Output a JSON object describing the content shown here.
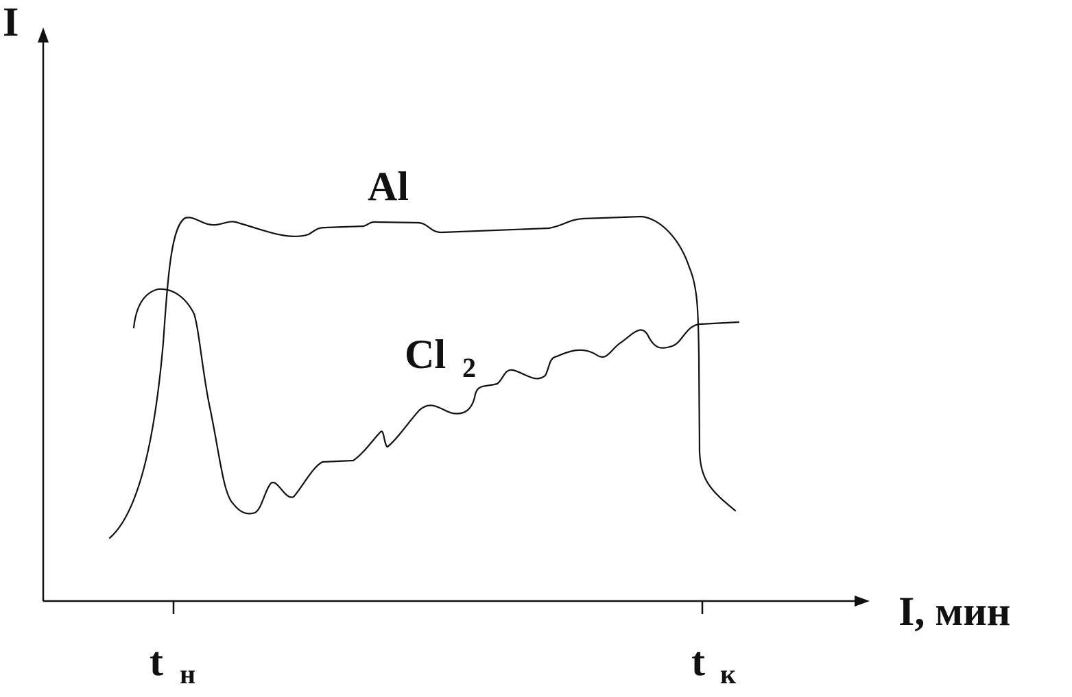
{
  "axes": {
    "y_label": "I",
    "x_label": "I, мин"
  },
  "markers": [
    {
      "label": "t",
      "subscript": "н"
    },
    {
      "label": "t",
      "subscript": "к"
    }
  ],
  "curves": [
    {
      "label": "Al"
    },
    {
      "label": "Cl",
      "subscript": "2"
    }
  ]
}
